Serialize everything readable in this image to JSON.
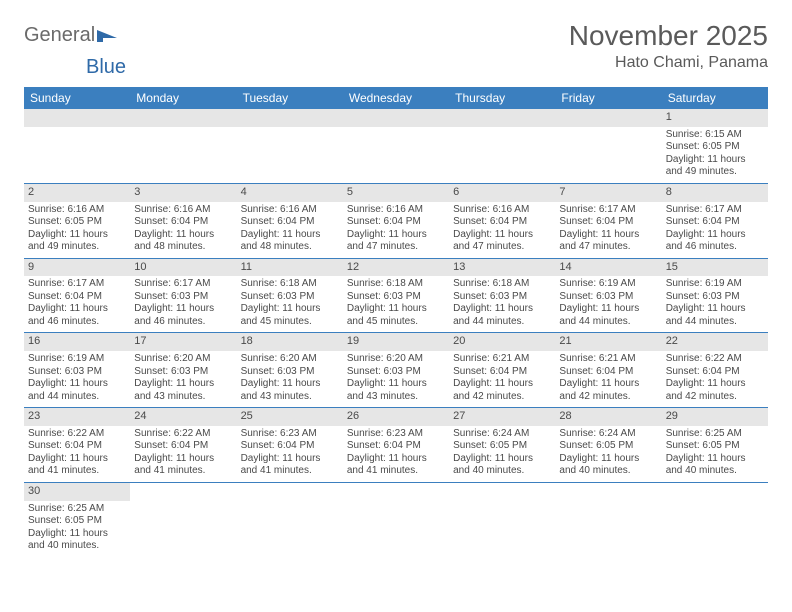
{
  "logo": {
    "text1": "General",
    "text2": "Blue"
  },
  "title": "November 2025",
  "location": "Hato Chami, Panama",
  "colors": {
    "header_bg": "#3b7fbf",
    "header_text": "#ffffff",
    "daynum_bg": "#e6e6e6",
    "border": "#3b7fbf",
    "body_text": "#4a4a4a"
  },
  "day_headers": [
    "Sunday",
    "Monday",
    "Tuesday",
    "Wednesday",
    "Thursday",
    "Friday",
    "Saturday"
  ],
  "weeks": [
    [
      null,
      null,
      null,
      null,
      null,
      null,
      {
        "n": "1",
        "sr": "Sunrise: 6:15 AM",
        "ss": "Sunset: 6:05 PM",
        "dl": "Daylight: 11 hours and 49 minutes."
      }
    ],
    [
      {
        "n": "2",
        "sr": "Sunrise: 6:16 AM",
        "ss": "Sunset: 6:05 PM",
        "dl": "Daylight: 11 hours and 49 minutes."
      },
      {
        "n": "3",
        "sr": "Sunrise: 6:16 AM",
        "ss": "Sunset: 6:04 PM",
        "dl": "Daylight: 11 hours and 48 minutes."
      },
      {
        "n": "4",
        "sr": "Sunrise: 6:16 AM",
        "ss": "Sunset: 6:04 PM",
        "dl": "Daylight: 11 hours and 48 minutes."
      },
      {
        "n": "5",
        "sr": "Sunrise: 6:16 AM",
        "ss": "Sunset: 6:04 PM",
        "dl": "Daylight: 11 hours and 47 minutes."
      },
      {
        "n": "6",
        "sr": "Sunrise: 6:16 AM",
        "ss": "Sunset: 6:04 PM",
        "dl": "Daylight: 11 hours and 47 minutes."
      },
      {
        "n": "7",
        "sr": "Sunrise: 6:17 AM",
        "ss": "Sunset: 6:04 PM",
        "dl": "Daylight: 11 hours and 47 minutes."
      },
      {
        "n": "8",
        "sr": "Sunrise: 6:17 AM",
        "ss": "Sunset: 6:04 PM",
        "dl": "Daylight: 11 hours and 46 minutes."
      }
    ],
    [
      {
        "n": "9",
        "sr": "Sunrise: 6:17 AM",
        "ss": "Sunset: 6:04 PM",
        "dl": "Daylight: 11 hours and 46 minutes."
      },
      {
        "n": "10",
        "sr": "Sunrise: 6:17 AM",
        "ss": "Sunset: 6:03 PM",
        "dl": "Daylight: 11 hours and 46 minutes."
      },
      {
        "n": "11",
        "sr": "Sunrise: 6:18 AM",
        "ss": "Sunset: 6:03 PM",
        "dl": "Daylight: 11 hours and 45 minutes."
      },
      {
        "n": "12",
        "sr": "Sunrise: 6:18 AM",
        "ss": "Sunset: 6:03 PM",
        "dl": "Daylight: 11 hours and 45 minutes."
      },
      {
        "n": "13",
        "sr": "Sunrise: 6:18 AM",
        "ss": "Sunset: 6:03 PM",
        "dl": "Daylight: 11 hours and 44 minutes."
      },
      {
        "n": "14",
        "sr": "Sunrise: 6:19 AM",
        "ss": "Sunset: 6:03 PM",
        "dl": "Daylight: 11 hours and 44 minutes."
      },
      {
        "n": "15",
        "sr": "Sunrise: 6:19 AM",
        "ss": "Sunset: 6:03 PM",
        "dl": "Daylight: 11 hours and 44 minutes."
      }
    ],
    [
      {
        "n": "16",
        "sr": "Sunrise: 6:19 AM",
        "ss": "Sunset: 6:03 PM",
        "dl": "Daylight: 11 hours and 44 minutes."
      },
      {
        "n": "17",
        "sr": "Sunrise: 6:20 AM",
        "ss": "Sunset: 6:03 PM",
        "dl": "Daylight: 11 hours and 43 minutes."
      },
      {
        "n": "18",
        "sr": "Sunrise: 6:20 AM",
        "ss": "Sunset: 6:03 PM",
        "dl": "Daylight: 11 hours and 43 minutes."
      },
      {
        "n": "19",
        "sr": "Sunrise: 6:20 AM",
        "ss": "Sunset: 6:03 PM",
        "dl": "Daylight: 11 hours and 43 minutes."
      },
      {
        "n": "20",
        "sr": "Sunrise: 6:21 AM",
        "ss": "Sunset: 6:04 PM",
        "dl": "Daylight: 11 hours and 42 minutes."
      },
      {
        "n": "21",
        "sr": "Sunrise: 6:21 AM",
        "ss": "Sunset: 6:04 PM",
        "dl": "Daylight: 11 hours and 42 minutes."
      },
      {
        "n": "22",
        "sr": "Sunrise: 6:22 AM",
        "ss": "Sunset: 6:04 PM",
        "dl": "Daylight: 11 hours and 42 minutes."
      }
    ],
    [
      {
        "n": "23",
        "sr": "Sunrise: 6:22 AM",
        "ss": "Sunset: 6:04 PM",
        "dl": "Daylight: 11 hours and 41 minutes."
      },
      {
        "n": "24",
        "sr": "Sunrise: 6:22 AM",
        "ss": "Sunset: 6:04 PM",
        "dl": "Daylight: 11 hours and 41 minutes."
      },
      {
        "n": "25",
        "sr": "Sunrise: 6:23 AM",
        "ss": "Sunset: 6:04 PM",
        "dl": "Daylight: 11 hours and 41 minutes."
      },
      {
        "n": "26",
        "sr": "Sunrise: 6:23 AM",
        "ss": "Sunset: 6:04 PM",
        "dl": "Daylight: 11 hours and 41 minutes."
      },
      {
        "n": "27",
        "sr": "Sunrise: 6:24 AM",
        "ss": "Sunset: 6:05 PM",
        "dl": "Daylight: 11 hours and 40 minutes."
      },
      {
        "n": "28",
        "sr": "Sunrise: 6:24 AM",
        "ss": "Sunset: 6:05 PM",
        "dl": "Daylight: 11 hours and 40 minutes."
      },
      {
        "n": "29",
        "sr": "Sunrise: 6:25 AM",
        "ss": "Sunset: 6:05 PM",
        "dl": "Daylight: 11 hours and 40 minutes."
      }
    ],
    [
      {
        "n": "30",
        "sr": "Sunrise: 6:25 AM",
        "ss": "Sunset: 6:05 PM",
        "dl": "Daylight: 11 hours and 40 minutes."
      },
      null,
      null,
      null,
      null,
      null,
      null
    ]
  ]
}
